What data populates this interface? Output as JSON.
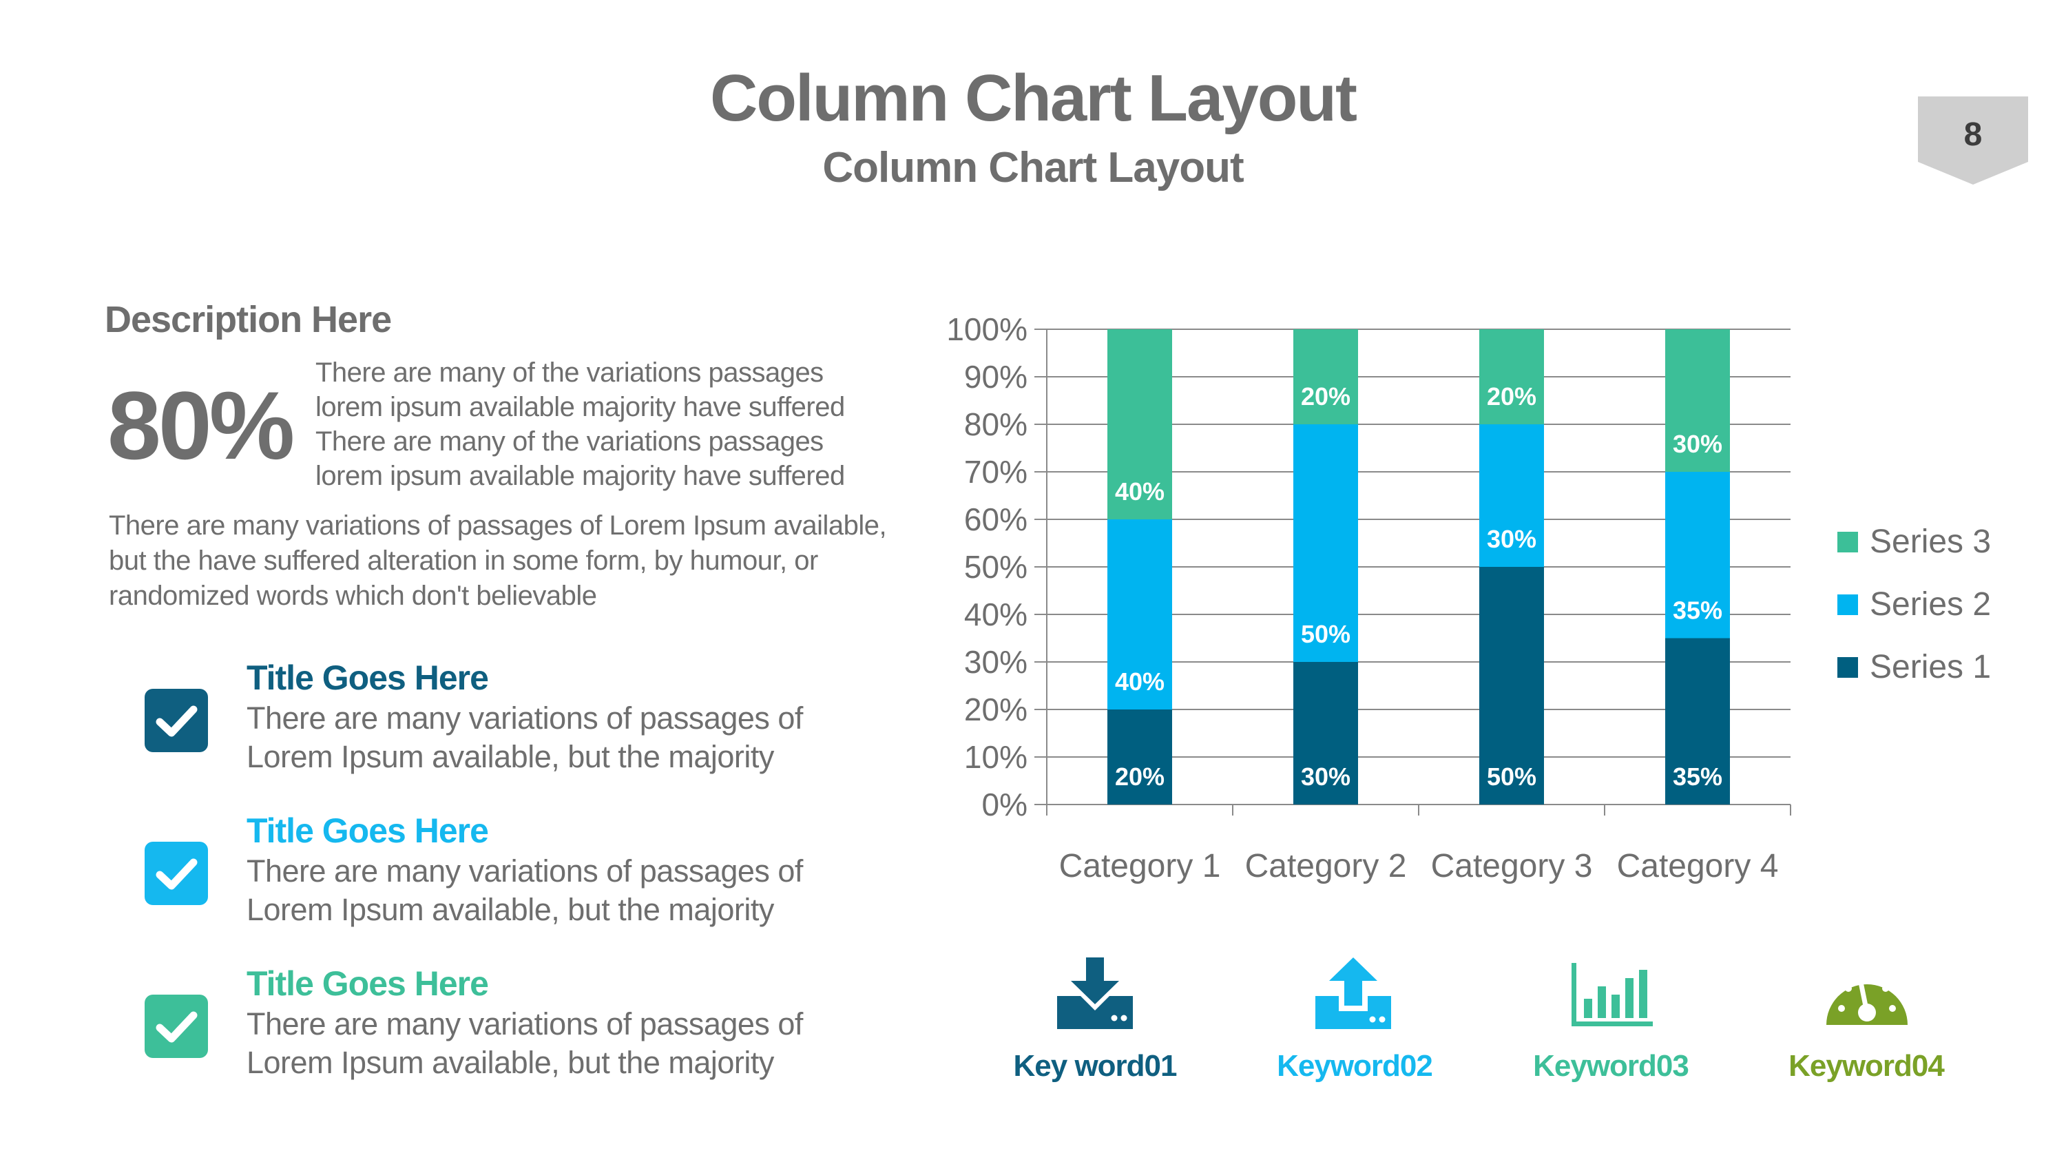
{
  "header": {
    "title": "Column Chart Layout",
    "subtitle": "Column Chart Layout",
    "page_number": "8"
  },
  "description": {
    "heading": "Description Here",
    "big_value": "80%",
    "paragraph1": "There are many of the variations passages lorem ipsum available majority have suffered There are many of the variations passages lorem ipsum available majority have suffered",
    "paragraph2": "There are many variations of passages  of Lorem Ipsum available, but the have suffered alteration in some  form, by humour, or randomized words which  don't believable"
  },
  "items": [
    {
      "title": "Title Goes Here",
      "text": "There are many variations of passages of Lorem Ipsum available, but the majority",
      "color": "#0f5f80",
      "icon": "check-icon"
    },
    {
      "title": "Title Goes Here",
      "text": "There are many variations of passages of Lorem Ipsum available, but the majority",
      "color": "#15b8ef",
      "icon": "check-icon"
    },
    {
      "title": "Title Goes Here",
      "text": "There are many variations of passages of Lorem Ipsum available, but the majority",
      "color": "#3dbf99",
      "icon": "check-icon"
    }
  ],
  "keywords": [
    {
      "label": "Key word01",
      "color": "#0f5f80",
      "icon": "download-icon"
    },
    {
      "label": "Keyword02",
      "color": "#15b8ef",
      "icon": "upload-icon"
    },
    {
      "label": "Keyword03",
      "color": "#3dbf99",
      "icon": "bar-chart-icon"
    },
    {
      "label": "Keyword04",
      "color": "#7aa127",
      "icon": "gauge-icon"
    }
  ],
  "chart_data": {
    "type": "bar",
    "stacked": true,
    "categories": [
      "Category 1",
      "Category 2",
      "Category 3",
      "Category 4"
    ],
    "series": [
      {
        "name": "Series 1",
        "values": [
          20,
          30,
          50,
          35
        ],
        "color": "#005f80",
        "labels": [
          "20%",
          "30%",
          "50%",
          "35%"
        ]
      },
      {
        "name": "Series 2",
        "values": [
          40,
          50,
          30,
          35
        ],
        "color": "#00b4f0",
        "labels": [
          "40%",
          "50%",
          "30%",
          "35%"
        ]
      },
      {
        "name": "Series 3",
        "values": [
          40,
          20,
          20,
          30
        ],
        "color": "#3cbf98",
        "labels": [
          "40%",
          "20%",
          "20%",
          "30%"
        ]
      }
    ],
    "ylim": [
      0,
      100
    ],
    "y_ticks": [
      "0%",
      "10%",
      "20%",
      "30%",
      "40%",
      "50%",
      "60%",
      "70%",
      "80%",
      "90%",
      "100%"
    ],
    "grid": true,
    "legend": "right"
  }
}
